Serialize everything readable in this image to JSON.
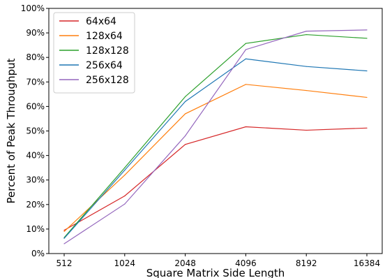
{
  "chart_data": {
    "type": "line",
    "title": "",
    "xlabel": "Square Matrix Side Length",
    "ylabel": "Percent of Peak Throughput",
    "categories": [
      "512",
      "1024",
      "2048",
      "4096",
      "8192",
      "16384"
    ],
    "ylim": [
      0,
      100
    ],
    "yticks": [
      "0%",
      "10%",
      "20%",
      "30%",
      "40%",
      "50%",
      "60%",
      "70%",
      "80%",
      "90%",
      "100%"
    ],
    "grid": false,
    "legend_position": "top-left",
    "series": [
      {
        "name": "64x64",
        "color": "#d62728",
        "values": [
          9.5,
          23.5,
          44.5,
          51.7,
          50.3,
          51.2
        ]
      },
      {
        "name": "128x64",
        "color": "#ff7f0e",
        "values": [
          9.0,
          32.0,
          57.0,
          69.0,
          66.5,
          63.7
        ]
      },
      {
        "name": "128x128",
        "color": "#2ca02c",
        "values": [
          6.5,
          35.0,
          64.0,
          85.7,
          89.3,
          87.8
        ]
      },
      {
        "name": "256x64",
        "color": "#1f77b4",
        "values": [
          6.2,
          34.0,
          62.0,
          79.4,
          76.3,
          74.5
        ]
      },
      {
        "name": "256x128",
        "color": "#9467bd",
        "values": [
          4.0,
          20.2,
          48.0,
          83.2,
          90.7,
          91.2
        ]
      }
    ]
  }
}
